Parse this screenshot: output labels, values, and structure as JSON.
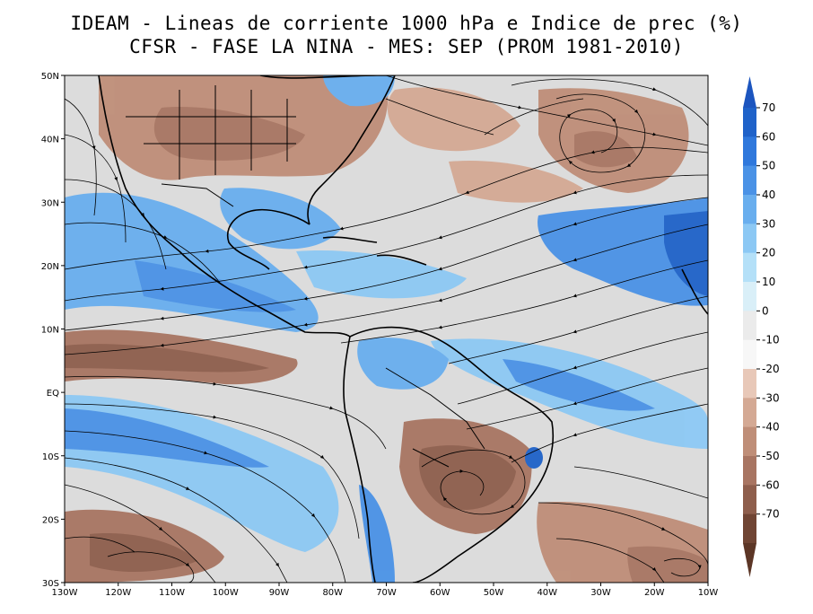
{
  "title_line1": "IDEAM - Lineas de corriente 1000 hPa e Indice de prec (%)",
  "title_line2": "CFSR - FASE LA NINA - MES: SEP (PROM 1981-2010)",
  "map": {
    "lon_range": [
      -130,
      -10
    ],
    "lat_range": [
      -30,
      50
    ],
    "lon_ticks": [
      {
        "value": -130,
        "label": "130W"
      },
      {
        "value": -120,
        "label": "120W"
      },
      {
        "value": -110,
        "label": "110W"
      },
      {
        "value": -100,
        "label": "100W"
      },
      {
        "value": -90,
        "label": "90W"
      },
      {
        "value": -80,
        "label": "80W"
      },
      {
        "value": -70,
        "label": "70W"
      },
      {
        "value": -60,
        "label": "60W"
      },
      {
        "value": -50,
        "label": "50W"
      },
      {
        "value": -40,
        "label": "40W"
      },
      {
        "value": -30,
        "label": "30W"
      },
      {
        "value": -20,
        "label": "20W"
      },
      {
        "value": -10,
        "label": "10W"
      }
    ],
    "lat_ticks": [
      {
        "value": 50,
        "label": "50N"
      },
      {
        "value": 40,
        "label": "40N"
      },
      {
        "value": 30,
        "label": "30N"
      },
      {
        "value": 20,
        "label": "20N"
      },
      {
        "value": 10,
        "label": "10N"
      },
      {
        "value": 0,
        "label": "EQ"
      },
      {
        "value": -10,
        "label": "10S"
      },
      {
        "value": -20,
        "label": "20S"
      },
      {
        "value": -30,
        "label": "30S"
      }
    ]
  },
  "colorbar": {
    "levels": [
      {
        "label": "70",
        "color": "#1f62c9"
      },
      {
        "label": "60",
        "color": "#2f78dc"
      },
      {
        "label": "50",
        "color": "#4a92e6"
      },
      {
        "label": "40",
        "color": "#69aeee"
      },
      {
        "label": "30",
        "color": "#8cc8f4"
      },
      {
        "label": "20",
        "color": "#b4e0f8"
      },
      {
        "label": "10",
        "color": "#d9eff8"
      },
      {
        "label": "0",
        "color": "#ebebeb"
      },
      {
        "label": "-10",
        "color": "#f7f7f7"
      },
      {
        "label": "-20",
        "color": "#e8c8b8"
      },
      {
        "label": "-30",
        "color": "#d4a994"
      },
      {
        "label": "-40",
        "color": "#bf8e78"
      },
      {
        "label": "-50",
        "color": "#a87562"
      },
      {
        "label": "-60",
        "color": "#8e5e4c"
      },
      {
        "label": "-70",
        "color": "#704534"
      }
    ],
    "top_tip_color": "#1c55bf",
    "bottom_tip_color": "#5c3626"
  }
}
